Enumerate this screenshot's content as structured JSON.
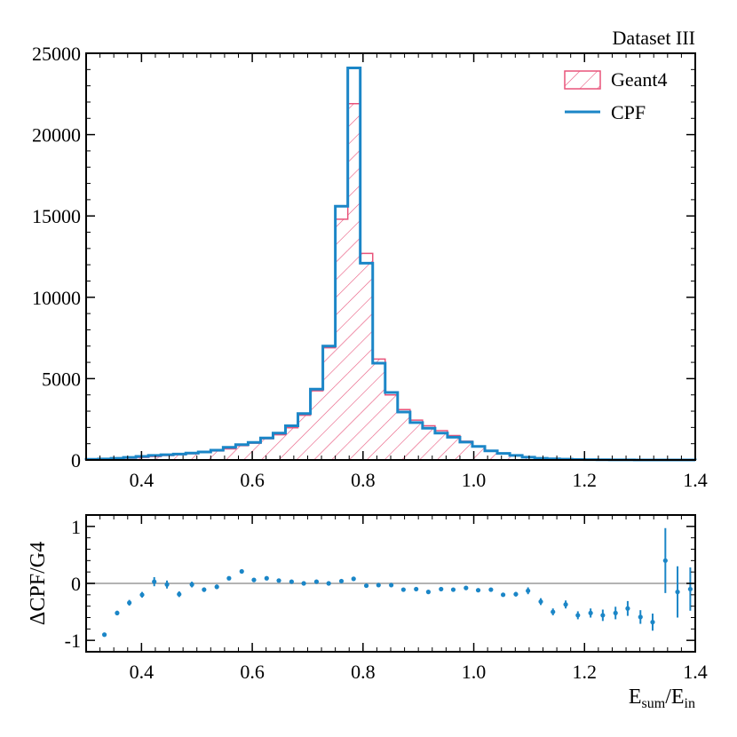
{
  "chart_data": [
    {
      "type": "histogram",
      "title": "Dataset III",
      "xlabel": "",
      "ylabel": "",
      "xlim": [
        0.3,
        1.4
      ],
      "ylim": [
        0,
        25000
      ],
      "xticks": [
        "0.4",
        "0.6",
        "0.8",
        "1.0",
        "1.2",
        "1.4"
      ],
      "yticks": [
        "0",
        "5000",
        "10000",
        "15000",
        "20000",
        "25000"
      ],
      "bin_edges": [
        0.3,
        0.3225,
        0.345,
        0.3675,
        0.39,
        0.4125,
        0.435,
        0.4575,
        0.48,
        0.5025,
        0.525,
        0.5475,
        0.57,
        0.5925,
        0.615,
        0.6375,
        0.66,
        0.6825,
        0.705,
        0.7275,
        0.75,
        0.7725,
        0.795,
        0.8175,
        0.84,
        0.8625,
        0.885,
        0.9075,
        0.93,
        0.9525,
        0.975,
        0.9975,
        1.02,
        1.0425,
        1.065,
        1.0875,
        1.11,
        1.1325,
        1.155,
        1.1775,
        1.2,
        1.2225,
        1.245,
        1.2675,
        1.29,
        1.3125,
        1.335,
        1.3575,
        1.38,
        1.4
      ],
      "series": [
        {
          "name": "Geant4",
          "style": "hatched",
          "color": "#e8537a",
          "values": [
            20,
            30,
            60,
            110,
            160,
            210,
            270,
            320,
            380,
            450,
            550,
            680,
            880,
            1030,
            1300,
            1550,
            1980,
            2750,
            4250,
            6900,
            14800,
            21900,
            12700,
            6200,
            4000,
            3100,
            2450,
            2100,
            1800,
            1500,
            1150,
            850,
            560,
            380,
            260,
            160,
            90,
            60,
            40,
            25,
            15,
            10,
            5,
            3,
            2,
            1,
            1,
            1,
            1
          ]
        },
        {
          "name": "CPF",
          "style": "step",
          "color": "#1b86c7",
          "values": [
            40,
            60,
            100,
            160,
            220,
            280,
            320,
            360,
            420,
            490,
            600,
            780,
            940,
            1080,
            1350,
            1650,
            2100,
            2850,
            4350,
            7000,
            15600,
            24100,
            12100,
            5950,
            4150,
            2950,
            2300,
            1950,
            1650,
            1400,
            1100,
            830,
            560,
            400,
            280,
            170,
            100,
            65,
            45,
            30,
            18,
            12,
            7,
            5,
            3,
            2,
            1,
            1,
            1
          ]
        }
      ],
      "legend": [
        "Geant4",
        "CPF"
      ],
      "legend_position": "top-right"
    },
    {
      "type": "scatter",
      "xlabel": "E",
      "xlabel_sub1": "sum",
      "xlabel_sep": "/E",
      "xlabel_sub2": "in",
      "ylabel": "ΔCPF/G4",
      "xlim": [
        0.3,
        1.4
      ],
      "ylim": [
        -1.2,
        1.2
      ],
      "xticks": [
        "0.4",
        "0.6",
        "0.8",
        "1.0",
        "1.2",
        "1.4"
      ],
      "yticks": [
        "-1",
        "0",
        "1"
      ],
      "reference_line": 0,
      "series": [
        {
          "name": "ΔCPF/G4",
          "color": "#1b86c7",
          "x": [
            0.333,
            0.356,
            0.378,
            0.401,
            0.423,
            0.446,
            0.468,
            0.491,
            0.513,
            0.536,
            0.558,
            0.581,
            0.603,
            0.626,
            0.648,
            0.671,
            0.693,
            0.716,
            0.738,
            0.761,
            0.783,
            0.806,
            0.828,
            0.851,
            0.873,
            0.896,
            0.918,
            0.941,
            0.963,
            0.986,
            1.008,
            1.031,
            1.053,
            1.076,
            1.098,
            1.121,
            1.143,
            1.166,
            1.188,
            1.211,
            1.233,
            1.256,
            1.278,
            1.301,
            1.323,
            1.346,
            1.368,
            1.391
          ],
          "y": [
            -0.9,
            -0.52,
            -0.34,
            -0.2,
            0.03,
            -0.02,
            -0.19,
            -0.02,
            -0.11,
            -0.06,
            0.09,
            0.21,
            0.06,
            0.09,
            0.05,
            0.03,
            0.0,
            0.03,
            0.0,
            0.04,
            0.08,
            -0.04,
            -0.03,
            -0.03,
            -0.11,
            -0.1,
            -0.15,
            -0.1,
            -0.11,
            -0.08,
            -0.12,
            -0.11,
            -0.2,
            -0.19,
            -0.13,
            -0.32,
            -0.5,
            -0.37,
            -0.56,
            -0.52,
            -0.56,
            -0.52,
            -0.44,
            -0.59,
            -0.68,
            0.4,
            -0.15,
            -0.1
          ],
          "yerr": [
            0.01,
            0.04,
            0.05,
            0.05,
            0.08,
            0.07,
            0.05,
            0.05,
            0.04,
            0.04,
            0.03,
            0.03,
            0.02,
            0.02,
            0.02,
            0.01,
            0.01,
            0.01,
            0.01,
            0.01,
            0.01,
            0.01,
            0.01,
            0.01,
            0.01,
            0.02,
            0.02,
            0.02,
            0.02,
            0.02,
            0.03,
            0.03,
            0.03,
            0.04,
            0.06,
            0.06,
            0.06,
            0.07,
            0.07,
            0.08,
            0.1,
            0.11,
            0.13,
            0.12,
            0.15,
            0.57,
            0.45,
            0.38
          ]
        }
      ]
    }
  ]
}
